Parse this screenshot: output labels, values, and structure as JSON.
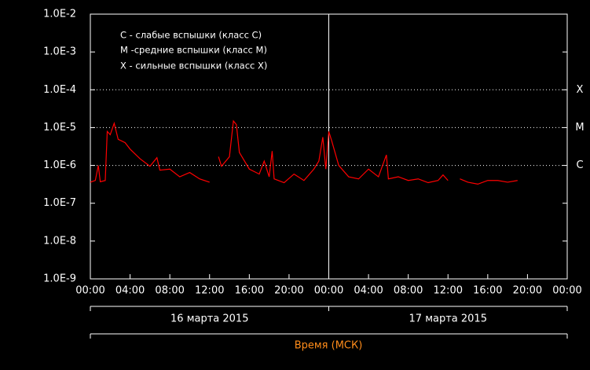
{
  "chart_data": {
    "type": "line",
    "yscale": "log",
    "ylim": [
      1e-09,
      0.01
    ],
    "yticks": [
      {
        "value": 1e-09,
        "label": "1.0E-9"
      },
      {
        "value": 1e-08,
        "label": "1.0E-8"
      },
      {
        "value": 1e-07,
        "label": "1.0E-7"
      },
      {
        "value": 1e-06,
        "label": "1.0E-6"
      },
      {
        "value": 1e-05,
        "label": "1.0E-5"
      },
      {
        "value": 0.0001,
        "label": "1.0E-4"
      },
      {
        "value": 0.001,
        "label": "1.0E-3"
      },
      {
        "value": 0.01,
        "label": "1.0E-2"
      }
    ],
    "xlim": [
      0,
      48
    ],
    "xticks": [
      {
        "value": 0,
        "label": "00:00"
      },
      {
        "value": 4,
        "label": "04:00"
      },
      {
        "value": 8,
        "label": "08:00"
      },
      {
        "value": 12,
        "label": "12:00"
      },
      {
        "value": 16,
        "label": "16:00"
      },
      {
        "value": 20,
        "label": "20:00"
      },
      {
        "value": 24,
        "label": "00:00"
      },
      {
        "value": 28,
        "label": "04:00"
      },
      {
        "value": 32,
        "label": "08:00"
      },
      {
        "value": 36,
        "label": "12:00"
      },
      {
        "value": 40,
        "label": "16:00"
      },
      {
        "value": 44,
        "label": "20:00"
      },
      {
        "value": 48,
        "label": "00:00"
      }
    ],
    "days": [
      {
        "label": "16 марта 2015",
        "range": [
          0,
          24
        ]
      },
      {
        "label": "17 марта 2015",
        "range": [
          24,
          48
        ]
      }
    ],
    "xlabel": "Время (МСК)",
    "legend_notes": [
      "C - слабые вспышки (класс C)",
      "M -средние вспышки (класс M)",
      "X - сильные вспышки (класс X)"
    ],
    "class_levels": [
      {
        "value": 0.0001,
        "label": "X"
      },
      {
        "value": 1e-05,
        "label": "M"
      },
      {
        "value": 1e-06,
        "label": "C"
      }
    ],
    "color": "#ff0000",
    "x": [
      0,
      0.5,
      0.8,
      1,
      1.5,
      1.7,
      2,
      2.4,
      2.8,
      3.5,
      4,
      5,
      6,
      6.7,
      7,
      8,
      9,
      10,
      11,
      12,
      12.5,
      12.9,
      13.2,
      14,
      14.4,
      14.7,
      15,
      16,
      17,
      17.5,
      18,
      18.3,
      18.5,
      19.5,
      20.5,
      21.5,
      22.5,
      23,
      23.4,
      23.7,
      24,
      24.3,
      25,
      26,
      27,
      28,
      29,
      29.8,
      30,
      31,
      32,
      33,
      34,
      35,
      35.5,
      36,
      36.6,
      37.2,
      38,
      39,
      40,
      41,
      42,
      43
    ],
    "values": [
      3.6e-07,
      4e-07,
      1e-06,
      3.7e-07,
      4e-07,
      7.9e-06,
      6.5e-06,
      1.3e-05,
      4.9e-06,
      4e-06,
      2.7e-06,
      1.5e-06,
      9.5e-07,
      1.6e-06,
      7.5e-07,
      8e-07,
      5e-07,
      6.5e-07,
      4.4e-07,
      3.6e-07,
      null,
      1.7e-06,
      9.5e-07,
      1.7e-06,
      1.5e-05,
      1.2e-05,
      2.2e-06,
      8e-07,
      5.9e-07,
      1.3e-06,
      5e-07,
      2.4e-06,
      4.4e-07,
      3.5e-07,
      5.9e-07,
      4e-07,
      8e-07,
      1.3e-06,
      5.6e-06,
      8e-07,
      7.9e-06,
      4.4e-06,
      1e-06,
      5e-07,
      4.4e-07,
      8e-07,
      5e-07,
      1.9e-06,
      4.4e-07,
      5e-07,
      4e-07,
      4.4e-07,
      3.5e-07,
      4e-07,
      5.6e-07,
      4e-07,
      null,
      4.4e-07,
      3.6e-07,
      3.2e-07,
      4e-07,
      4e-07,
      3.6e-07,
      4e-07
    ]
  }
}
